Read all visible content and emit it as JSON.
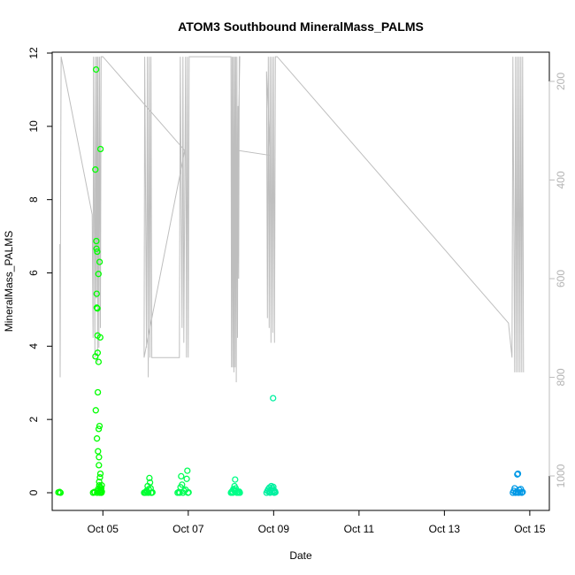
{
  "chart_data": {
    "type": "scatter",
    "title": "ATOM3 Southbound MineralMass_PALMS",
    "xlabel": "Date",
    "ylabel": "MineralMass_PALMS",
    "ylim": [
      0,
      12
    ],
    "yticks": [
      0,
      2,
      4,
      6,
      8,
      10,
      12
    ],
    "xlim": [
      "2017-10-03T19:30",
      "2017-10-15T11:00"
    ],
    "xticks": [
      {
        "label": "Oct 05",
        "date": "2017-10-05T00:00"
      },
      {
        "label": "Oct 07",
        "date": "2017-10-07T00:00"
      },
      {
        "label": "Oct 09",
        "date": "2017-10-09T00:00"
      },
      {
        "label": "Oct 11",
        "date": "2017-10-11T00:00"
      },
      {
        "label": "Oct 13",
        "date": "2017-10-13T00:00"
      },
      {
        "label": "Oct 15",
        "date": "2017-10-15T00:00"
      }
    ],
    "secondary_axis": {
      "side": "right",
      "ylim": [
        150,
        1050
      ],
      "reversed": true,
      "ticks": [
        200,
        400,
        600,
        800,
        1000
      ],
      "color": "#bebebe"
    },
    "grid": false,
    "series": [
      {
        "color": "#00ff00",
        "points": [
          [
            "2017-10-03T23:00",
            0.01
          ],
          [
            "2017-10-03T23:40",
            0.02
          ],
          [
            "2017-10-04T00:10",
            0.0
          ],
          [
            "2017-10-04T18:30",
            0.0
          ],
          [
            "2017-10-04T19:10",
            0.02
          ],
          [
            "2017-10-04T19:25",
            0.01
          ],
          [
            "2017-10-04T19:45",
            8.82
          ],
          [
            "2017-10-04T19:50",
            3.72
          ],
          [
            "2017-10-04T20:00",
            2.25
          ],
          [
            "2017-10-04T20:10",
            11.55
          ],
          [
            "2017-10-04T20:20",
            6.87
          ],
          [
            "2017-10-04T20:25",
            6.66
          ],
          [
            "2017-10-04T20:30",
            5.43
          ],
          [
            "2017-10-04T20:35",
            5.05
          ],
          [
            "2017-10-04T20:40",
            1.48
          ],
          [
            "2017-10-04T20:45",
            0.0
          ],
          [
            "2017-10-04T20:50",
            6.58
          ],
          [
            "2017-10-04T20:55",
            5.03
          ],
          [
            "2017-10-04T21:00",
            4.29
          ],
          [
            "2017-10-04T21:05",
            3.82
          ],
          [
            "2017-10-04T21:10",
            2.74
          ],
          [
            "2017-10-04T21:15",
            1.13
          ],
          [
            "2017-10-04T21:20",
            0.1
          ],
          [
            "2017-10-04T21:25",
            0.05
          ],
          [
            "2017-10-04T21:30",
            5.97
          ],
          [
            "2017-10-04T21:35",
            3.57
          ],
          [
            "2017-10-04T21:40",
            1.74
          ],
          [
            "2017-10-04T21:45",
            0.75
          ],
          [
            "2017-10-04T21:50",
            0.97
          ],
          [
            "2017-10-04T21:55",
            0.3
          ],
          [
            "2017-10-04T22:00",
            0.2
          ],
          [
            "2017-10-04T22:05",
            1.82
          ],
          [
            "2017-10-04T22:10",
            6.3
          ],
          [
            "2017-10-04T22:15",
            0.0
          ],
          [
            "2017-10-04T22:20",
            0.42
          ],
          [
            "2017-10-04T22:25",
            0.15
          ],
          [
            "2017-10-04T22:30",
            4.24
          ],
          [
            "2017-10-04T22:35",
            0.52
          ],
          [
            "2017-10-04T22:40",
            9.38
          ],
          [
            "2017-10-04T22:45",
            0.08
          ],
          [
            "2017-10-04T22:50",
            0.02
          ],
          [
            "2017-10-04T22:55",
            0.0
          ],
          [
            "2017-10-04T23:00",
            0.05
          ],
          [
            "2017-10-04T23:05",
            0.12
          ],
          [
            "2017-10-04T23:10",
            0.0
          ],
          [
            "2017-10-04T23:15",
            0.01
          ],
          [
            "2017-10-04T23:20",
            0.2
          ],
          [
            "2017-10-04T23:25",
            0.03
          ]
        ]
      },
      {
        "color": "#00ff33",
        "points": [
          [
            "2017-10-05T23:10",
            0.0
          ],
          [
            "2017-10-05T23:30",
            0.0
          ],
          [
            "2017-10-05T23:50",
            0.01
          ],
          [
            "2017-10-06T00:10",
            0.0
          ],
          [
            "2017-10-06T00:30",
            0.05
          ],
          [
            "2017-10-06T00:50",
            0.02
          ],
          [
            "2017-10-06T01:10",
            0.18
          ],
          [
            "2017-10-06T01:30",
            0.0
          ],
          [
            "2017-10-06T01:50",
            0.1
          ],
          [
            "2017-10-06T02:10",
            0.4
          ],
          [
            "2017-10-06T02:30",
            0.28
          ],
          [
            "2017-10-06T02:50",
            0.12
          ],
          [
            "2017-10-06T03:10",
            0.0
          ],
          [
            "2017-10-06T03:30",
            0.0
          ],
          [
            "2017-10-06T03:50",
            0.01
          ]
        ]
      },
      {
        "color": "#00ff55",
        "points": [
          [
            "2017-10-06T18:00",
            0.0
          ],
          [
            "2017-10-06T18:40",
            0.02
          ],
          [
            "2017-10-06T19:10",
            0.0
          ],
          [
            "2017-10-06T19:40",
            0.15
          ],
          [
            "2017-10-06T20:00",
            0.45
          ],
          [
            "2017-10-06T20:30",
            0.22
          ],
          [
            "2017-10-06T21:00",
            0.0
          ],
          [
            "2017-10-06T21:40",
            0.05
          ],
          [
            "2017-10-06T22:30",
            0.08
          ],
          [
            "2017-10-06T23:10",
            0.38
          ],
          [
            "2017-10-06T23:30",
            0.6
          ],
          [
            "2017-10-06T23:50",
            0.0
          ],
          [
            "2017-10-07T00:10",
            0.01
          ]
        ]
      },
      {
        "color": "#00ff88",
        "points": [
          [
            "2017-10-08T00:00",
            0.0
          ],
          [
            "2017-10-08T00:20",
            0.02
          ],
          [
            "2017-10-08T00:40",
            0.04
          ],
          [
            "2017-10-08T01:00",
            0.0
          ],
          [
            "2017-10-08T01:20",
            0.1
          ],
          [
            "2017-10-08T01:40",
            0.07
          ],
          [
            "2017-10-08T02:00",
            0.18
          ],
          [
            "2017-10-08T02:20",
            0.36
          ],
          [
            "2017-10-08T02:40",
            0.12
          ],
          [
            "2017-10-08T03:00",
            0.05
          ],
          [
            "2017-10-08T03:20",
            0.0
          ],
          [
            "2017-10-08T03:40",
            0.02
          ],
          [
            "2017-10-08T04:00",
            0.0
          ],
          [
            "2017-10-08T04:20",
            0.01
          ],
          [
            "2017-10-08T04:40",
            0.03
          ],
          [
            "2017-10-08T05:00",
            0.0
          ]
        ]
      },
      {
        "color": "#00f0a0",
        "points": [
          [
            "2017-10-08T20:00",
            0.0
          ],
          [
            "2017-10-08T20:30",
            0.05
          ],
          [
            "2017-10-08T21:00",
            0.1
          ],
          [
            "2017-10-08T21:20",
            0.02
          ],
          [
            "2017-10-08T21:40",
            0.14
          ],
          [
            "2017-10-08T22:00",
            0.0
          ],
          [
            "2017-10-08T22:20",
            0.08
          ],
          [
            "2017-10-08T22:40",
            0.18
          ],
          [
            "2017-10-08T23:00",
            0.03
          ],
          [
            "2017-10-08T23:20",
            0.12
          ],
          [
            "2017-10-08T23:40",
            2.58
          ],
          [
            "2017-10-08T23:50",
            0.16
          ],
          [
            "2017-10-09T00:00",
            0.06
          ],
          [
            "2017-10-09T00:20",
            0.0
          ],
          [
            "2017-10-09T00:40",
            0.04
          ],
          [
            "2017-10-09T01:00",
            0.01
          ]
        ]
      },
      {
        "color": "#0099e6",
        "points": [
          [
            "2017-10-14T14:30",
            0.0
          ],
          [
            "2017-10-14T15:00",
            0.05
          ],
          [
            "2017-10-14T15:30",
            0.12
          ],
          [
            "2017-10-14T16:00",
            0.0
          ],
          [
            "2017-10-14T16:30",
            0.02
          ],
          [
            "2017-10-14T17:00",
            0.5
          ],
          [
            "2017-10-14T17:20",
            0.52
          ],
          [
            "2017-10-14T17:40",
            0.0
          ],
          [
            "2017-10-14T18:00",
            0.08
          ],
          [
            "2017-10-14T18:30",
            0.01
          ],
          [
            "2017-10-14T19:00",
            0.1
          ],
          [
            "2017-10-14T19:30",
            0.0
          ],
          [
            "2017-10-14T20:00",
            0.02
          ]
        ]
      }
    ],
    "background_trace": {
      "color": "#bebebe",
      "description_axis": "secondary",
      "points": [
        [
          "2017-10-03T23:50",
          530
        ],
        [
          "2017-10-04T00:00",
          800
        ],
        [
          "2017-10-04T00:10",
          490
        ],
        [
          "2017-10-04T00:30",
          150
        ],
        [
          "2017-10-04T18:00",
          470
        ],
        [
          "2017-10-04T18:30",
          720
        ],
        [
          "2017-10-04T18:45",
          150
        ],
        [
          "2017-10-04T19:30",
          760
        ],
        [
          "2017-10-04T19:50",
          150
        ],
        [
          "2017-10-04T20:15",
          640
        ],
        [
          "2017-10-04T20:40",
          150
        ],
        [
          "2017-10-04T21:00",
          770
        ],
        [
          "2017-10-04T21:20",
          150
        ],
        [
          "2017-10-04T21:45",
          740
        ],
        [
          "2017-10-04T22:10",
          150
        ],
        [
          "2017-10-04T22:35",
          700
        ],
        [
          "2017-10-04T23:00",
          150
        ],
        [
          "2017-10-04T23:30",
          150
        ],
        [
          "2017-10-05T00:00",
          150
        ],
        [
          "2017-10-06T22:00",
          340
        ],
        [
          "2017-10-05T23:10",
          760
        ],
        [
          "2017-10-05T23:30",
          150
        ],
        [
          "2017-10-06T00:30",
          740
        ],
        [
          "2017-10-06T01:00",
          150
        ],
        [
          "2017-10-06T01:30",
          800
        ],
        [
          "2017-10-06T02:00",
          150
        ],
        [
          "2017-10-06T02:30",
          760
        ],
        [
          "2017-10-06T03:00",
          150
        ],
        [
          "2017-10-06T03:30",
          760
        ],
        [
          "2017-10-06T19:00",
          760
        ],
        [
          "2017-10-06T19:30",
          150
        ],
        [
          "2017-10-06T20:30",
          700
        ],
        [
          "2017-10-06T21:00",
          150
        ],
        [
          "2017-10-06T21:30",
          730
        ],
        [
          "2017-10-06T22:30",
          150
        ],
        [
          "2017-10-06T23:00",
          760
        ],
        [
          "2017-10-06T23:30",
          150
        ],
        [
          "2017-10-07T00:00",
          760
        ],
        [
          "2017-10-07T00:30",
          150
        ],
        [
          "2017-10-07T12:00",
          150
        ],
        [
          "2017-10-08T00:00",
          150
        ],
        [
          "2017-10-08T00:20",
          780
        ],
        [
          "2017-10-08T00:40",
          150
        ],
        [
          "2017-10-08T01:00",
          780
        ],
        [
          "2017-10-08T01:20",
          150
        ],
        [
          "2017-10-08T01:40",
          790
        ],
        [
          "2017-10-08T02:00",
          150
        ],
        [
          "2017-10-08T02:20",
          780
        ],
        [
          "2017-10-08T02:40",
          150
        ],
        [
          "2017-10-08T03:00",
          810
        ],
        [
          "2017-10-08T03:20",
          150
        ],
        [
          "2017-10-08T03:40",
          720
        ],
        [
          "2017-10-08T04:00",
          250
        ],
        [
          "2017-10-08T04:20",
          600
        ],
        [
          "2017-10-08T04:40",
          150
        ],
        [
          "2017-10-08T05:00",
          150
        ],
        [
          "2017-10-08T04:00",
          340
        ],
        [
          "2017-10-08T22:00",
          350
        ],
        [
          "2017-10-08T20:00",
          180
        ],
        [
          "2017-10-08T20:30",
          680
        ],
        [
          "2017-10-08T21:00",
          150
        ],
        [
          "2017-10-08T21:30",
          700
        ],
        [
          "2017-10-08T22:00",
          150
        ],
        [
          "2017-10-08T22:30",
          730
        ],
        [
          "2017-10-08T23:00",
          150
        ],
        [
          "2017-10-08T23:30",
          710
        ],
        [
          "2017-10-09T00:00",
          150
        ],
        [
          "2017-10-09T00:30",
          730
        ],
        [
          "2017-10-09T01:00",
          150
        ],
        [
          "2017-10-09T02:00",
          150
        ],
        [
          "2017-10-14T12:00",
          690
        ],
        [
          "2017-10-14T14:00",
          760
        ],
        [
          "2017-10-14T14:30",
          150
        ],
        [
          "2017-10-14T15:30",
          790
        ],
        [
          "2017-10-14T16:00",
          150
        ],
        [
          "2017-10-14T16:30",
          790
        ],
        [
          "2017-10-14T17:00",
          150
        ],
        [
          "2017-10-14T17:30",
          790
        ],
        [
          "2017-10-14T18:00",
          150
        ],
        [
          "2017-10-14T18:30",
          790
        ],
        [
          "2017-10-14T19:00",
          150
        ],
        [
          "2017-10-14T19:30",
          790
        ],
        [
          "2017-10-14T20:00",
          150
        ],
        [
          "2017-10-14T20:30",
          790
        ]
      ]
    }
  }
}
